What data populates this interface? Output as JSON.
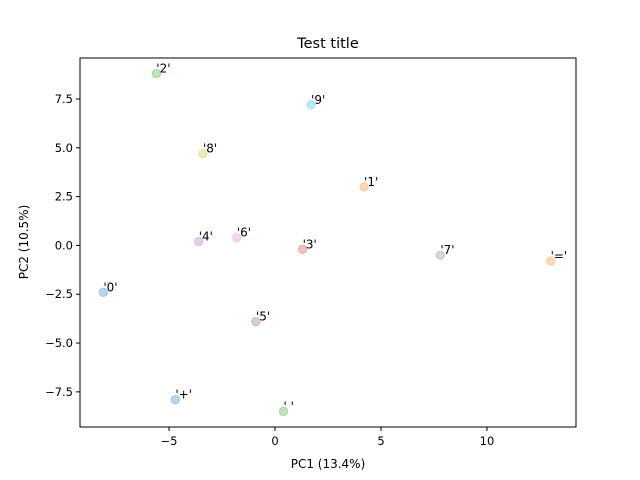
{
  "chart_data": {
    "type": "scatter",
    "title": "Test title",
    "xlabel": "PC1 (13.4%)",
    "ylabel": "PC2 (10.5%)",
    "xlim": [
      -9.2,
      14.2
    ],
    "ylim": [
      -9.3,
      9.6
    ],
    "xticks": [
      -5,
      0,
      5,
      10
    ],
    "yticks": [
      -7.5,
      -5.0,
      -2.5,
      0.0,
      2.5,
      5.0,
      7.5
    ],
    "xtick_labels": [
      "−5",
      "0",
      "5",
      "10"
    ],
    "ytick_labels": [
      "−7.5",
      "−5.0",
      "−2.5",
      "0.0",
      "2.5",
      "5.0",
      "7.5"
    ],
    "grid": false,
    "points": [
      {
        "label": "'2'",
        "x": -5.6,
        "y": 8.8,
        "color": "#2ca02c"
      },
      {
        "label": "'9'",
        "x": 1.7,
        "y": 7.2,
        "color": "#17becf"
      },
      {
        "label": "'8'",
        "x": -3.4,
        "y": 4.7,
        "color": "#bcbd22"
      },
      {
        "label": "'1'",
        "x": 4.2,
        "y": 3.0,
        "color": "#ff7f0e"
      },
      {
        "label": "'6'",
        "x": -1.8,
        "y": 0.4,
        "color": "#e377c2"
      },
      {
        "label": "'4'",
        "x": -3.6,
        "y": 0.2,
        "color": "#9467bd"
      },
      {
        "label": "'3'",
        "x": 1.3,
        "y": -0.2,
        "color": "#d62728"
      },
      {
        "label": "'7'",
        "x": 7.8,
        "y": -0.5,
        "color": "#7f7f7f"
      },
      {
        "label": "'='",
        "x": 13.0,
        "y": -0.8,
        "color": "#ff7f0e"
      },
      {
        "label": "'0'",
        "x": -8.1,
        "y": -2.4,
        "color": "#1f77b4"
      },
      {
        "label": "'5'",
        "x": -0.9,
        "y": -3.9,
        "color": "#8c564b"
      },
      {
        "label": "'+'",
        "x": -4.7,
        "y": -7.9,
        "color": "#1f77b4"
      },
      {
        "label": "' '",
        "x": 0.4,
        "y": -8.5,
        "color": "#2ca02c"
      }
    ]
  }
}
